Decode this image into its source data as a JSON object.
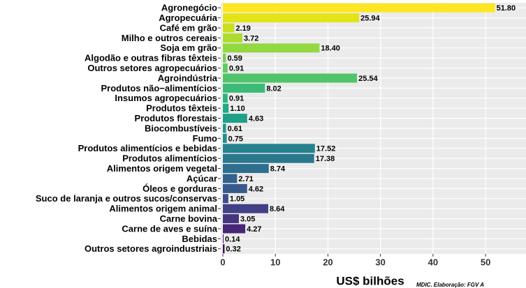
{
  "chart_data": {
    "type": "barh",
    "categories": [
      "Agronegócio",
      "Agropecuária",
      "Café em grão",
      "Milho e outros cereais",
      "Soja em grão",
      "Algodão e outras fibras têxteis",
      "Outros setores agropecuários",
      "Agroindústria",
      "Produtos não−alimentícios",
      "Insumos agropecuários",
      "Produtos têxteis",
      "Produtos florestais",
      "Biocombustíveis",
      "Fumo",
      "Produtos alimentícios e bebidas",
      "Produtos alimentícios",
      "Alimentos origem vegetal",
      "Açúcar",
      "Óleos e gorduras",
      "Suco de laranja e outros sucos/conservas",
      "Alimentos origem animal",
      "Carne bovina",
      "Carne de aves e suína",
      "Bebidas",
      "Outros setores agroindustriais"
    ],
    "values": [
      51.8,
      25.94,
      2.19,
      3.72,
      18.4,
      0.59,
      0.91,
      25.54,
      8.02,
      0.91,
      1.1,
      4.63,
      0.61,
      0.75,
      17.52,
      17.38,
      8.74,
      2.71,
      4.62,
      1.05,
      8.64,
      3.05,
      4.27,
      0.14,
      0.32
    ],
    "value_labels": [
      "51.80",
      "25.94",
      "2.19",
      "3.72",
      "18.40",
      "0.59",
      "0.91",
      "25.54",
      "8.02",
      "0.91",
      "1.10",
      "4.63",
      "0.61",
      "0.75",
      "17.52",
      "17.38",
      "8.74",
      "2.71",
      "4.62",
      "1.05",
      "8.64",
      "3.05",
      "4.27",
      "0.14",
      "0.32"
    ],
    "colors": [
      "#fde725",
      "#e2e418",
      "#c8e020",
      "#addc30",
      "#93d741",
      "#7ad151",
      "#62cb5f",
      "#4fc46a",
      "#3bbb75",
      "#2eb37c",
      "#22a884",
      "#1fa088",
      "#1f988b",
      "#228d8d",
      "#26828e",
      "#2a788e",
      "#2e6e8e",
      "#33638d",
      "#38598c",
      "#3e4c8a",
      "#424086",
      "#463480",
      "#482576",
      "#481769",
      "#440154"
    ],
    "xlabel": "US$ bilhões",
    "caption": "MDIC. Elaboração: FGV A",
    "xlim": [
      -0.4,
      57.7
    ],
    "xticks": [
      0,
      10,
      20,
      30,
      40,
      50
    ],
    "grid": true
  }
}
